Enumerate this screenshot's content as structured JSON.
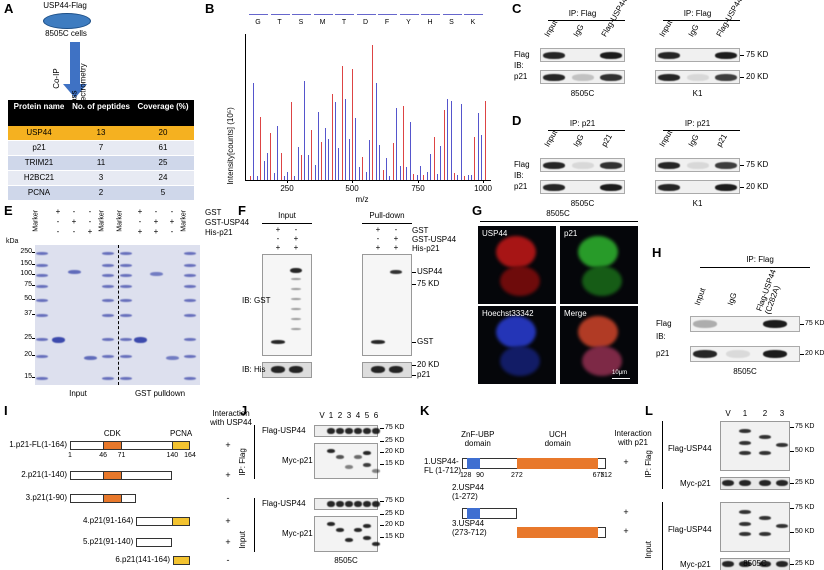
{
  "panel_letters": [
    "A",
    "B",
    "C",
    "D",
    "E",
    "F",
    "G",
    "H",
    "I",
    "J",
    "K",
    "L"
  ],
  "panel_a": {
    "bait": "USP44-Flag",
    "cells": "8505C cells",
    "co_ip": "Co-IP",
    "ms": "Mass spectrometry",
    "table": {
      "header": [
        "Protein name",
        "No. of peptides",
        "Coverage (%)"
      ],
      "rows": [
        [
          "USP44",
          "13",
          "20"
        ],
        [
          "p21",
          "7",
          "61"
        ],
        [
          "TRIM21",
          "11",
          "25"
        ],
        [
          "H2BC21",
          "3",
          "24"
        ],
        [
          "PCNA",
          "2",
          "5"
        ]
      ]
    }
  },
  "panel_b": {
    "sequence": [
      "G",
      "T",
      "S",
      "M",
      "T",
      "D",
      "F",
      "Y",
      "H",
      "S",
      "K"
    ],
    "y_label": "Intensity[counts] (10⁵)",
    "x_label": "m/z",
    "x_ticks": [
      "250",
      "500",
      "750",
      "1000"
    ]
  },
  "panel_c": {
    "ip": "IP: Flag",
    "lanes": [
      "Input",
      "IgG",
      "Flag-USP44"
    ],
    "ib": "IB:",
    "rows": [
      "Flag",
      "p21"
    ],
    "cells": [
      "8505C",
      "K1"
    ],
    "markers": [
      "75 KD",
      "20 KD"
    ]
  },
  "panel_d": {
    "ip": "IP: p21",
    "lanes": [
      "Input",
      "IgG",
      "p21"
    ],
    "ib": "IB:",
    "rows": [
      "Flag",
      "p21"
    ],
    "cells": [
      "8505C",
      "K1"
    ],
    "markers": [
      "75 KD",
      "20 KD"
    ]
  },
  "panel_e": {
    "kda": "kDa",
    "marker": "Marker",
    "proteins": [
      "GST",
      "GST-USP44",
      "His-p21"
    ],
    "signs": [
      [
        "+",
        "-",
        "-",
        "+",
        "-",
        "-"
      ],
      [
        "-",
        "+",
        "-",
        "-",
        "+",
        "+"
      ],
      [
        "-",
        "-",
        "+",
        "+",
        "+",
        "-"
      ]
    ],
    "ladder": [
      "250",
      "150",
      "100",
      "75",
      "50",
      "37",
      "25",
      "20",
      "15"
    ],
    "sections": [
      "Input",
      "GST pulldown"
    ]
  },
  "panel_f": {
    "sections": [
      "Input",
      "Pull-down"
    ],
    "proteins": [
      "GST",
      "GST-USP44",
      "His-p21"
    ],
    "signs": [
      [
        "+",
        "-",
        "+",
        "-"
      ],
      [
        "-",
        "+",
        "-",
        "+"
      ],
      [
        "+",
        "+",
        "+",
        "+"
      ]
    ],
    "ib": [
      "IB: GST",
      "IB: His"
    ],
    "markers": [
      "USP44",
      "75 KD",
      "GST",
      "20 KD",
      "p21"
    ]
  },
  "panel_g": {
    "cells": "8505C",
    "channels": [
      "USP44",
      "p21",
      "Hoechst33342",
      "Merge"
    ],
    "scale": "10μm"
  },
  "panel_h": {
    "ip": "IP: Flag",
    "lanes": [
      "Input",
      "IgG",
      "Flag-USP44 (C282A)"
    ],
    "ib": "IB:",
    "rows": [
      "Flag",
      "p21"
    ],
    "markers": [
      "75 KD",
      "20 KD"
    ],
    "cells": "8505C"
  },
  "panel_i": {
    "domains": [
      "CDK",
      "PCNA"
    ],
    "positions": [
      1,
      46,
      71,
      140,
      164
    ],
    "interaction": "Interaction with USP44",
    "constructs": [
      {
        "label": "1.p21-FL(1-164)",
        "result": "+"
      },
      {
        "label": "2.p21(1-140)",
        "result": "+"
      },
      {
        "label": "3.p21(1-90)",
        "result": "-"
      },
      {
        "label": "4.p21(91-164)",
        "result": "+"
      },
      {
        "label": "5.p21(91-140)",
        "result": "+"
      },
      {
        "label": "6.p21(141-164)",
        "result": "-"
      }
    ]
  },
  "panel_j": {
    "lanes": [
      "V",
      "1",
      "2",
      "3",
      "4",
      "5",
      "6"
    ],
    "ip": "IP: Flag",
    "input": "Input",
    "rows": [
      "Flag-USP44",
      "Myc-p21"
    ],
    "markers": [
      "75 KD",
      "25 KD",
      "20 KD",
      "15 KD"
    ],
    "cells": "8505C"
  },
  "panel_k": {
    "domains": [
      "ZnF-UBP domain",
      "UCH domain"
    ],
    "positions": [
      1,
      28,
      90,
      272,
      675,
      712
    ],
    "interaction": "Interaction with p21",
    "constructs": [
      {
        "label": "1.USP44-FL (1-712)",
        "result": "+"
      },
      {
        "label": "2.USP44 (1-272)",
        "result": "+"
      },
      {
        "label": "3.USP44 (273-712)",
        "result": "+"
      }
    ]
  },
  "panel_l": {
    "lanes": [
      "V",
      "1",
      "2",
      "3"
    ],
    "ip": "IP: Flag",
    "input": "Input",
    "rows": [
      "Flag-USP44",
      "Myc-p21"
    ],
    "markers": [
      "75 KD",
      "50 KD",
      "25 KD"
    ],
    "cells": "8505C"
  }
}
